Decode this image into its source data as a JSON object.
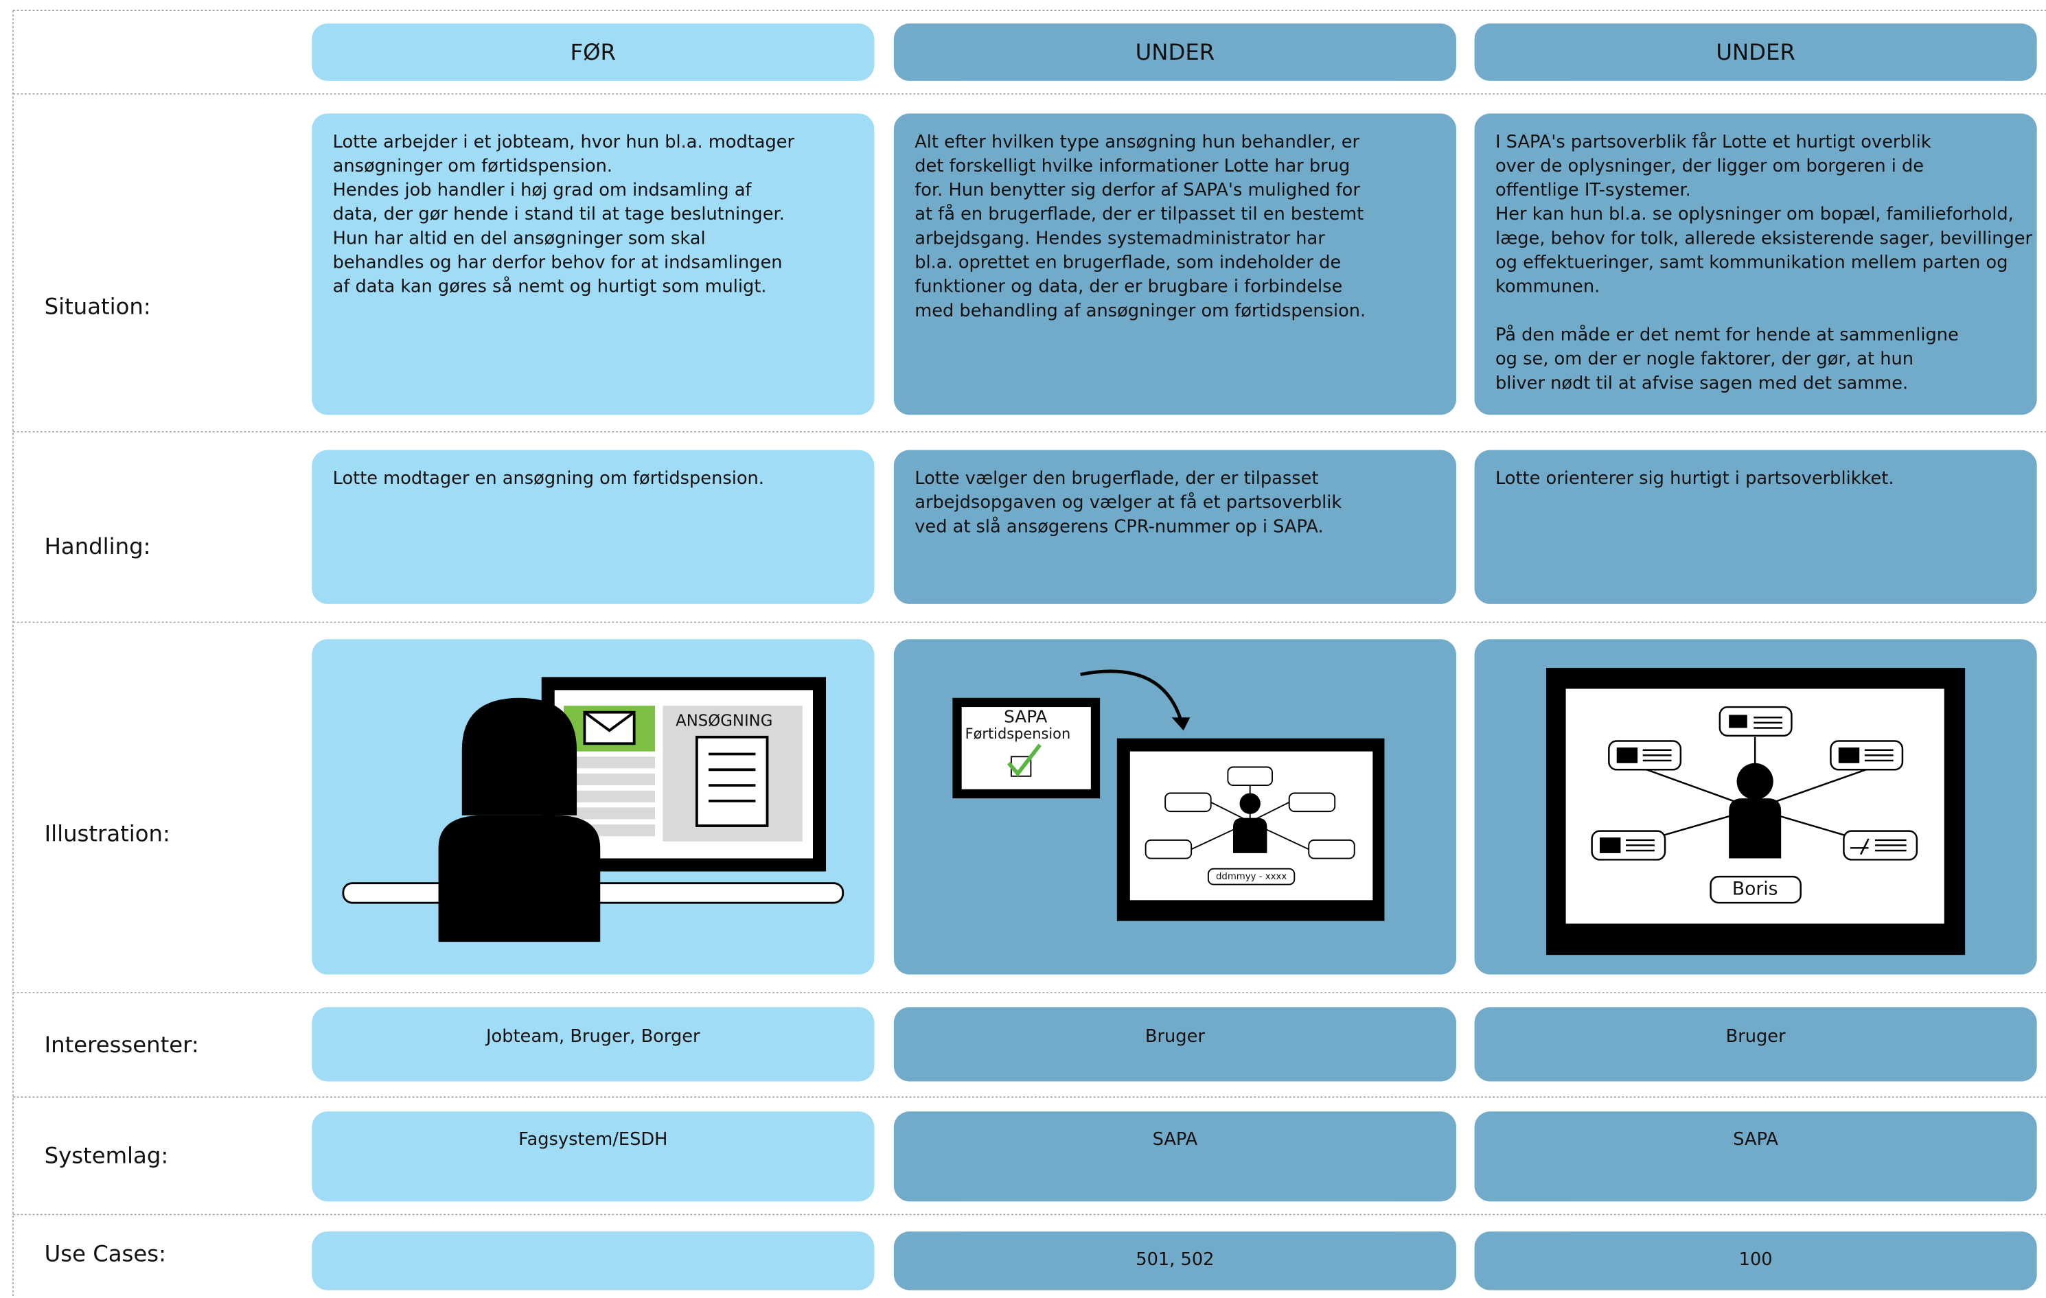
{
  "row_labels": {
    "situation": "Situation:",
    "handling": "Handling:",
    "illustration": "Illustration:",
    "interessenter": "Interessenter:",
    "systemlag": "Systemlag:",
    "use_cases": "Use Cases:"
  },
  "columns": [
    {
      "header": "FØR",
      "situation": [
        "Lotte arbejder i et jobteam, hvor hun bl.a. modtager",
        "ansøgninger om førtidspension.",
        "Hendes job handler i høj grad om indsamling af",
        "data, der gør hende i stand til at tage beslutninger.",
        "Hun har altid en del  ansøgninger som skal",
        "behandles og har derfor behov for at indsamlingen",
        "af data kan gøres så nemt og hurtigt som muligt."
      ],
      "handling": [
        "Lotte modtager en ansøgning om førtidspension."
      ],
      "interessenter": "Jobteam, Bruger, Borger",
      "systemlag": "Fagsystem/ESDH"
    },
    {
      "header": "UNDER",
      "situation": [
        "Alt efter hvilken type ansøgning hun behandler, er",
        "det forskelligt hvilke informationer Lotte har brug",
        "for. Hun benytter sig derfor af SAPA's mulighed for",
        "at få en brugerflade, der er tilpasset til en bestemt",
        "arbejdsgang. Hendes systemadministrator har",
        "bl.a. oprettet en brugerflade, som indeholder de",
        "funktioner og data, der er brugbare i forbindelse",
        "med behandling af ansøgninger om førtidspension."
      ],
      "handling": [
        "Lotte vælger den brugerflade, der er tilpasset",
        "arbejdsopgaven og vælger at få et partsoverblik",
        "ved at slå ansøgerens CPR-nummer op i SAPA."
      ],
      "interessenter": "Bruger",
      "systemlag": "SAPA",
      "use_cases": "501, 502"
    },
    {
      "header": "UNDER",
      "situation": [
        "I SAPA's partsoverblik får Lotte et hurtigt overblik",
        "over de oplysninger, der ligger  om borgeren i de",
        "offentlige IT-systemer.",
        "Her kan hun bl.a. se oplysninger om bopæl, familieforhold,",
        "læge, behov for tolk, allerede eksisterende sager, bevillinger",
        "og effektueringer, samt kommunikation mellem parten og",
        "kommunen.",
        null,
        "På den måde er det nemt for hende at sammenligne",
        "og se, om der er nogle faktorer, der gør, at hun",
        "bliver nødt til at afvise sagen med det samme."
      ],
      "handling": [
        "Lotte orienterer sig hurtigt i partsoverblikket."
      ],
      "interessenter": "Bruger",
      "systemlag": "SAPA",
      "use_cases": "100"
    }
  ],
  "illustrations": {
    "application_label": "ANSØGNING",
    "tablet_title": "SAPA",
    "tablet_subtitle": "Førtidspension",
    "cpr_field": "ddmmyy - xxxx",
    "person_name": "Boris"
  }
}
